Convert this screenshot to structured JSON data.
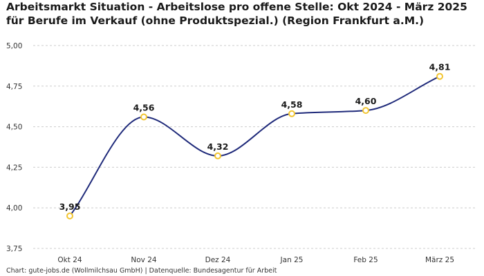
{
  "chart_data": {
    "type": "line",
    "title": "Arbeitsmarkt Situation - Arbeitslose pro offene Stelle: Okt 2024 - März 2025 für Berufe im Verkauf (ohne Produktspezial.) (Region Frankfurt a.M.)",
    "categories": [
      "Okt 24",
      "Nov 24",
      "Dez 24",
      "Jan 25",
      "Feb 25",
      "März 25"
    ],
    "values": [
      3.95,
      4.56,
      4.32,
      4.58,
      4.6,
      4.81
    ],
    "value_labels": [
      "3,95",
      "4,56",
      "4,32",
      "4,58",
      "4,60",
      "4,81"
    ],
    "yticks": [
      3.75,
      4.0,
      4.25,
      4.5,
      4.75,
      5.0
    ],
    "ytick_labels": [
      "3,75",
      "4,00",
      "4,25",
      "4,50",
      "4,75",
      "5,00"
    ],
    "ylim": [
      3.75,
      5.0
    ],
    "xlabel": "",
    "ylabel": "",
    "grid": true,
    "line_color": "#1f2a7a",
    "marker_color": "#f2c530",
    "grid_color": "#cccccc"
  },
  "footer": {
    "source": "Chart: gute-jobs.de (Wollmilchsau GmbH) | Datenquelle: Bundesagentur für Arbeit"
  }
}
